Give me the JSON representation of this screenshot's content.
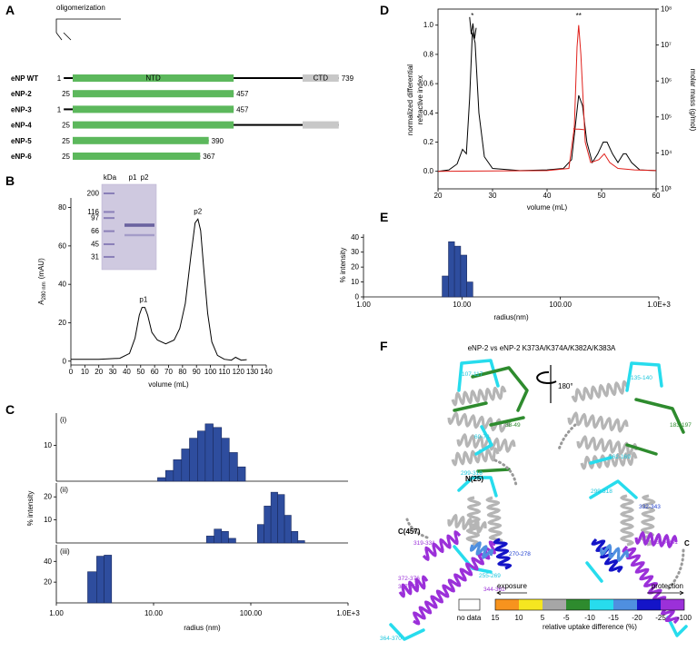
{
  "panels": {
    "A": {
      "letter": "A",
      "bracket": "oligomerization",
      "domain_ntd": "NTD",
      "domain_ctd": "CTD",
      "colors": {
        "ntd": "#5cb85c",
        "ctd": "#c8c8c8",
        "line": "#000000"
      },
      "constructs": [
        {
          "name": "eNP WT",
          "line": [
            1,
            739
          ],
          "ntd": [
            25,
            457
          ],
          "ctd": [
            642,
            739
          ],
          "left": 1,
          "right": 739
        },
        {
          "name": "eNP-2",
          "line": [
            25,
            457
          ],
          "ntd": [
            25,
            457
          ],
          "left": 25,
          "right": 457
        },
        {
          "name": "eNP-3",
          "line": [
            1,
            457
          ],
          "ntd": [
            25,
            457
          ],
          "left": 1,
          "right": 457
        },
        {
          "name": "eNP-4",
          "line": [
            25,
            739
          ],
          "ntd": [
            25,
            457
          ],
          "ctd": [
            642,
            739
          ],
          "left": 25
        },
        {
          "name": "eNP-5",
          "line": [
            25,
            390
          ],
          "ntd": [
            25,
            390
          ],
          "left": 25,
          "right": 390
        },
        {
          "name": "eNP-6",
          "line": [
            25,
            367
          ],
          "ntd": [
            25,
            367
          ],
          "left": 25,
          "right": 367
        }
      ]
    },
    "B": {
      "letter": "B",
      "type": "line",
      "color": "#000000",
      "x": [
        0,
        20,
        35,
        42,
        46,
        49,
        51,
        53,
        55,
        58,
        62,
        68,
        74,
        78,
        82,
        86,
        89,
        91,
        93,
        95,
        98,
        101,
        105,
        110,
        115,
        118,
        122,
        126
      ],
      "values": [
        1,
        1,
        1.5,
        4,
        12,
        24,
        28,
        28,
        24,
        15,
        11,
        9,
        11,
        17,
        30,
        55,
        72,
        74,
        68,
        50,
        25,
        10,
        3,
        1,
        0.5,
        2,
        0.5,
        0.8
      ],
      "xlim": [
        0,
        140
      ],
      "ylim": [
        -2,
        85
      ],
      "xticks": [
        0,
        10,
        20,
        30,
        40,
        50,
        60,
        70,
        80,
        90,
        100,
        110,
        120,
        130,
        140
      ],
      "yticks": [
        0,
        20,
        40,
        60,
        80
      ],
      "x_label": "volume (mL)",
      "y_label": [
        "A",
        "280 nm",
        "(mAU)"
      ],
      "peaks": [
        {
          "label": "p1",
          "x": 52
        },
        {
          "label": "p2",
          "x": 91
        }
      ],
      "gel": {
        "unit": "kDa",
        "lanes": [
          "p1",
          "p2"
        ],
        "markers": [
          200,
          116,
          97,
          66,
          45,
          31
        ]
      }
    },
    "C": {
      "letter": "C",
      "type": "histogram",
      "log_x": true,
      "color": "#2e4d9e",
      "x_label": "radius (nm)",
      "y_label": "% intensity",
      "xlim": [
        1,
        1000
      ],
      "xticks": [
        {
          "value": 1,
          "label": "1.00"
        },
        {
          "value": 10,
          "label": "10.00"
        },
        {
          "value": 100,
          "label": "100.00"
        },
        {
          "value": 1000,
          "label": "1.0E+3"
        }
      ],
      "charts": [
        {
          "tag": "(i)",
          "bins": [
            11,
            13.3,
            16,
            19.4,
            23.4,
            28.3,
            34,
            41,
            50,
            60,
            73,
            88
          ],
          "values": [
            1,
            3,
            6,
            9,
            12,
            14,
            16,
            15,
            12,
            8,
            4
          ],
          "ylim": [
            0,
            19
          ],
          "yticks": [
            10
          ]
        },
        {
          "tag": "(ii)",
          "bins": [
            35,
            42,
            50,
            59,
            70,
            84,
            100,
            117,
            137,
            161,
            189,
            222,
            260,
            305,
            358
          ],
          "values": [
            3,
            6,
            5,
            2,
            0,
            0,
            0,
            8,
            16,
            22,
            21,
            12,
            5,
            1
          ],
          "ylim": [
            0,
            26
          ],
          "yticks": [
            10,
            20
          ]
        },
        {
          "tag": "(iii)",
          "bins": [
            2.1,
            2.6,
            3.1,
            3.7
          ],
          "values": [
            30,
            45,
            46
          ],
          "ylim": [
            0,
            56
          ],
          "yticks": [
            20,
            40
          ]
        }
      ]
    },
    "D": {
      "letter": "D",
      "type": "line",
      "xlim": [
        20,
        60
      ],
      "ylim": [
        -0.12,
        1.11
      ],
      "y2lim": [
        1000,
        100000000
      ],
      "y2_log": true,
      "xticks": [
        20,
        30,
        40,
        50,
        60
      ],
      "yticks": [
        {
          "value": 0,
          "label": "0.0"
        },
        0.2,
        0.4,
        0.6,
        0.8,
        {
          "value": 1,
          "label": "1.0"
        }
      ],
      "y2ticks": [
        {
          "value": 1000,
          "label": "10³"
        },
        {
          "value": 10000,
          "label": "10⁴"
        },
        {
          "value": 100000,
          "label": "10⁵"
        },
        {
          "value": 1000000,
          "label": "10⁶"
        },
        {
          "value": 10000000,
          "label": "10⁷"
        },
        {
          "value": 100000000,
          "label": "10⁸"
        }
      ],
      "x_label": "volume (mL)",
      "y_label": [
        "normalized differential",
        "refractive index"
      ],
      "y2_label": "molar mass (g/mol)",
      "annotations": [
        {
          "text": "*",
          "x": 26.3
        },
        {
          "text": "**",
          "x": 45.8
        }
      ],
      "series": [
        {
          "color": "#000000",
          "x": [
            20,
            22,
            23.5,
            24.5,
            25.2,
            25.8,
            26.3,
            26.8,
            27.5,
            28.5,
            30,
            35,
            40,
            43,
            44.5,
            45.3,
            45.8,
            46.5,
            47.3,
            48.3,
            49.3,
            50.3,
            51,
            52,
            53,
            54,
            54.5,
            55.5,
            57,
            60
          ],
          "values": [
            0,
            0.01,
            0.05,
            0.15,
            0.12,
            0.5,
            0.95,
            0.88,
            0.4,
            0.1,
            0.02,
            0.005,
            0.01,
            0.02,
            0.08,
            0.35,
            0.52,
            0.45,
            0.2,
            0.06,
            0.12,
            0.2,
            0.2,
            0.12,
            0.06,
            0.12,
            0.12,
            0.06,
            0.01,
            0.005
          ]
        },
        {
          "color": "#e0201b",
          "x": [
            20,
            40,
            44,
            45,
            45.5,
            45.8,
            46.2,
            47,
            48,
            49.5,
            50.5,
            51.5,
            53,
            56,
            60
          ],
          "values": [
            0,
            0.005,
            0.02,
            0.3,
            0.85,
            1.0,
            0.8,
            0.2,
            0.06,
            0.08,
            0.12,
            0.06,
            0.02,
            0.01,
            0.005
          ]
        },
        {
          "color": "#000000",
          "axis": "y2",
          "x": [
            25.8,
            26.1,
            26.4,
            26.7,
            27
          ],
          "values": [
            60000000,
            20000000,
            40000000,
            15000000,
            30000000
          ]
        },
        {
          "color": "#e0201b",
          "axis": "y2",
          "x": [
            44.8,
            45.3,
            45.8,
            46.3,
            46.8
          ],
          "values": [
            47000,
            46000,
            46000,
            45000,
            44000
          ]
        }
      ]
    },
    "E": {
      "letter": "E",
      "type": "histogram",
      "log_x": true,
      "color": "#2e4d9e",
      "x_label": "radius(nm)",
      "y_label": "% intensity",
      "xlim": [
        1,
        1000
      ],
      "xticks": [
        {
          "value": 1,
          "label": "1.00"
        },
        {
          "value": 10,
          "label": "10.00"
        },
        {
          "value": 100,
          "label": "100.00"
        },
        {
          "value": 1000,
          "label": "1.0E+3"
        }
      ],
      "bins": [
        6.3,
        7.3,
        8.4,
        9.7,
        11.2,
        12.9
      ],
      "values": [
        14,
        37,
        34,
        28,
        10
      ],
      "ylim": [
        0,
        42
      ],
      "yticks": [
        0,
        10,
        20,
        30,
        40
      ]
    },
    "F": {
      "letter": "F",
      "title": "eNP-2 vs eNP-2 K373A/K374A/K382A/K383A",
      "rotation": "180°",
      "left_labels": [
        "107-117",
        "38-49",
        "60-73",
        "N(25)",
        "299-318",
        "C(457)",
        "319-331",
        "270-278",
        "255-269",
        "372-376",
        "377-384",
        "344-362",
        "364-370"
      ],
      "right_labels": [
        "135-140",
        "183-197",
        "162-169",
        "299-318",
        "332-343",
        "319-331",
        "C"
      ],
      "legend": {
        "exposure": "exposure",
        "protection": "protection",
        "no_data": "no data",
        "caption": "relative uptake difference (%)",
        "ticks": [
          15,
          10,
          5,
          -5,
          -10,
          -15,
          -20,
          -25,
          -100
        ],
        "colors": [
          "#f7931e",
          "#f5e620",
          "#a6a6a6",
          "#2e8b2e",
          "#27dced",
          "#4f8fe0",
          "#1414c8",
          "#9b30d9"
        ]
      }
    }
  }
}
